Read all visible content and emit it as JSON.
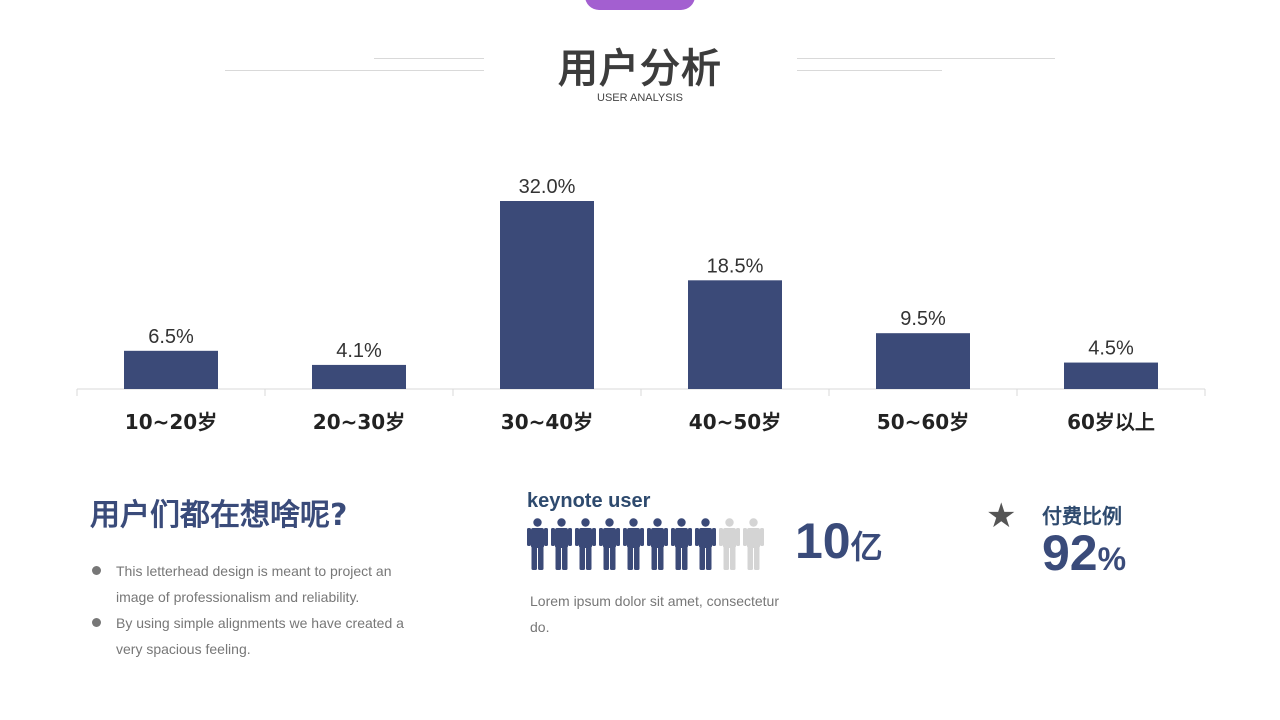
{
  "header": {
    "title": "用户分析",
    "subtitle": "USER ANALYSIS"
  },
  "colors": {
    "bar": "#3b4a78",
    "accent_tab": "#a35fd0",
    "person_active": "#3b4a78",
    "person_inactive": "#d4d4d4"
  },
  "chart_data": {
    "type": "bar",
    "categories": [
      "10~20岁",
      "20~30岁",
      "30~40岁",
      "40~50岁",
      "50~60岁",
      "60岁以上"
    ],
    "values": [
      6.5,
      4.1,
      32.0,
      18.5,
      9.5,
      4.5
    ],
    "data_labels": [
      "6.5%",
      "4.1%",
      "32.0%",
      "18.5%",
      "9.5%",
      "4.5%"
    ],
    "title": "",
    "xlabel": "",
    "ylabel": "",
    "ylim": [
      0,
      35
    ],
    "grid": false,
    "legend": "none"
  },
  "question": {
    "title": "用户们都在想啥呢?",
    "bullets": [
      "This letterhead design is meant to project an image of professionalism and reliability.",
      "By using simple alignments we have created a very spacious feeling."
    ]
  },
  "keynote": {
    "title": "keynote user",
    "people_total": 10,
    "people_active": 8,
    "icon": "person-icon",
    "number": "10",
    "unit": "亿",
    "description": "Lorem ipsum dolor sit amet, consectetur do."
  },
  "payment": {
    "icon": "star-icon",
    "label": "付费比例",
    "number": "92",
    "unit": "%"
  }
}
